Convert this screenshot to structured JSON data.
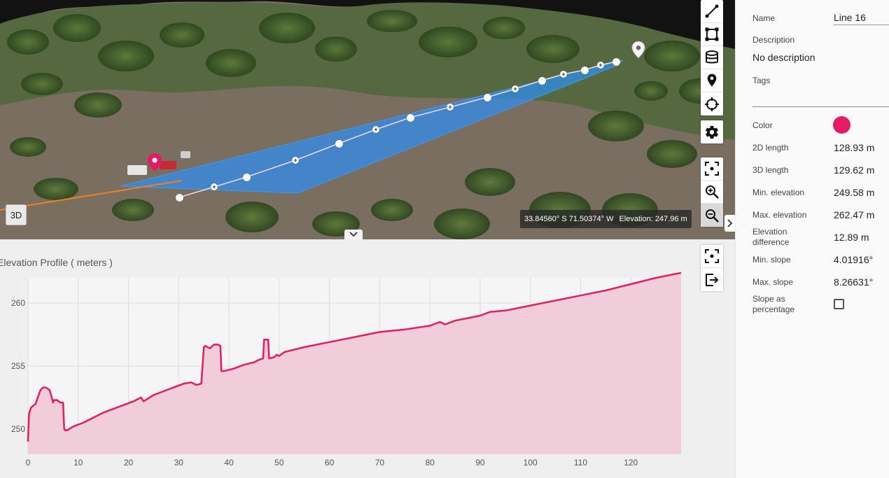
{
  "viewer": {
    "mode_label": "3D",
    "coordinate_readout": "33.84560° S 71.50374° W",
    "elevation_readout": "Elevation: 247.96 m",
    "toolbar_icons": [
      "line-measure-icon",
      "area-measure-icon",
      "volume-measure-icon",
      "place-marker-icon",
      "crosshair-icon",
      "gear-icon",
      "fit-view-icon",
      "zoom-in-icon",
      "zoom-out-icon"
    ]
  },
  "profile": {
    "title": "Elevation Profile ( meters )",
    "toolbar_icons": [
      "fit-view-icon",
      "export-icon"
    ]
  },
  "chart_data": {
    "type": "area",
    "title": "Elevation Profile ( meters )",
    "xlabel": "",
    "ylabel": "",
    "xlim": [
      0,
      130
    ],
    "ylim": [
      248,
      262
    ],
    "x_ticks": [
      0,
      10,
      20,
      30,
      40,
      50,
      60,
      70,
      80,
      90,
      100,
      110,
      120
    ],
    "y_ticks": [
      250,
      255,
      260
    ],
    "grid": true,
    "color": "#e31c63",
    "fill": "#f0cdd8",
    "series": [
      {
        "x": [
          0,
          0.2,
          0.6,
          1.5,
          2.5,
          3.0,
          3.5,
          4.3,
          5.0,
          5.2,
          5.8,
          6.4,
          7.0,
          7.2,
          7.4,
          7.8,
          9,
          11,
          13,
          15,
          17,
          19,
          21,
          22.5,
          23,
          25,
          27,
          29,
          31,
          32.5,
          33.5,
          34.5,
          35.0,
          35.3,
          36.2,
          37,
          37.8,
          38.3,
          38.5,
          39,
          41,
          43,
          45,
          46,
          46.8,
          47.0,
          47.4,
          47.8,
          48.0,
          49,
          49.5,
          50,
          51,
          55,
          60,
          65,
          70,
          75,
          80,
          82,
          83,
          85,
          90,
          92,
          95,
          100,
          105,
          110,
          115,
          120,
          125,
          130
        ],
        "values": [
          249.0,
          251.2,
          251.7,
          252.0,
          253.1,
          253.3,
          253.3,
          253.1,
          252.1,
          252.3,
          252.3,
          252.1,
          252.1,
          250.0,
          249.9,
          249.9,
          250.2,
          250.5,
          250.9,
          251.3,
          251.6,
          251.9,
          252.2,
          252.5,
          252.2,
          252.7,
          253.0,
          253.3,
          253.6,
          253.7,
          253.5,
          253.6,
          256.5,
          256.6,
          256.4,
          256.7,
          256.7,
          256.6,
          254.6,
          254.6,
          254.8,
          255.1,
          255.3,
          255.5,
          255.6,
          257.1,
          257.1,
          257.1,
          255.6,
          255.7,
          255.9,
          255.8,
          256.1,
          256.5,
          256.9,
          257.3,
          257.7,
          257.9,
          258.2,
          258.5,
          258.3,
          258.6,
          259.0,
          259.3,
          259.4,
          259.8,
          260.2,
          260.6,
          261.0,
          261.5,
          262.0,
          262.4
        ]
      }
    ]
  },
  "panel": {
    "name_label": "Name",
    "name_value": "Line 16",
    "description_label": "Description",
    "description_value": "No description",
    "tags_label": "Tags",
    "color_label": "Color",
    "color_value": "#e31c63",
    "length2d_label": "2D length",
    "length2d_value": "128.93 m",
    "length3d_label": "3D length",
    "length3d_value": "129.62 m",
    "min_elev_label": "Min. elevation",
    "min_elev_value": "249.58 m",
    "max_elev_label": "Max. elevation",
    "max_elev_value": "262.47 m",
    "elev_diff_label_1": "Elevation",
    "elev_diff_label_2": "difference",
    "elev_diff_value": "12.89 m",
    "min_slope_label": "Min. slope",
    "min_slope_value": "4.01916°",
    "max_slope_label": "Max. slope",
    "max_slope_value": "8.26631°",
    "slope_pct_label_1": "Slope as",
    "slope_pct_label_2": "percentage",
    "slope_pct_checked": false
  }
}
